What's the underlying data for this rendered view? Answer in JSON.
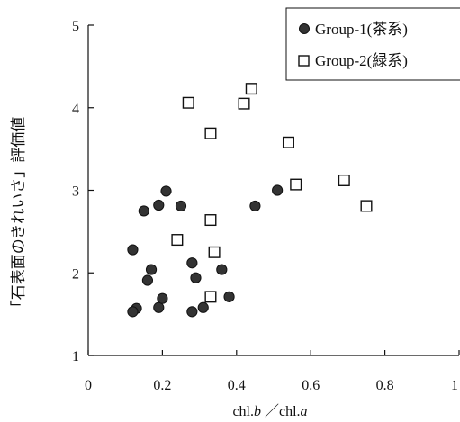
{
  "chart_data": {
    "type": "scatter",
    "title": "",
    "xlabel": "chl.b ／chl.a",
    "xlabel_parts": {
      "a": "chl.",
      "b": "b",
      "sep": " ／chl.",
      "c": "a"
    },
    "ylabel": "「石表面のきれいさ」評価値",
    "xlim": [
      0,
      1
    ],
    "ylim": [
      1,
      5
    ],
    "xticks": [
      "0",
      "0.2",
      "0.4",
      "0.6",
      "0.8",
      "1"
    ],
    "yticks": [
      "1",
      "2",
      "3",
      "4",
      "5"
    ],
    "grid": false,
    "legend": "top-right",
    "series": [
      {
        "name": "Group-1(茶系)",
        "marker": "filled-circle",
        "points": [
          [
            0.12,
            2.28
          ],
          [
            0.15,
            2.75
          ],
          [
            0.19,
            2.82
          ],
          [
            0.21,
            2.99
          ],
          [
            0.25,
            2.81
          ],
          [
            0.16,
            1.91
          ],
          [
            0.17,
            2.04
          ],
          [
            0.13,
            1.57
          ],
          [
            0.12,
            1.53
          ],
          [
            0.19,
            1.58
          ],
          [
            0.2,
            1.69
          ],
          [
            0.28,
            2.12
          ],
          [
            0.29,
            1.94
          ],
          [
            0.28,
            1.53
          ],
          [
            0.31,
            1.58
          ],
          [
            0.36,
            2.04
          ],
          [
            0.38,
            1.71
          ],
          [
            0.45,
            2.81
          ],
          [
            0.51,
            3.0
          ]
        ]
      },
      {
        "name": "Group-2(緑系)",
        "marker": "open-square",
        "points": [
          [
            0.27,
            4.06
          ],
          [
            0.33,
            3.69
          ],
          [
            0.42,
            4.05
          ],
          [
            0.44,
            4.23
          ],
          [
            0.54,
            3.58
          ],
          [
            0.24,
            2.4
          ],
          [
            0.33,
            2.64
          ],
          [
            0.34,
            2.25
          ],
          [
            0.33,
            1.71
          ],
          [
            0.56,
            3.07
          ],
          [
            0.69,
            3.12
          ],
          [
            0.75,
            2.81
          ]
        ]
      }
    ]
  }
}
